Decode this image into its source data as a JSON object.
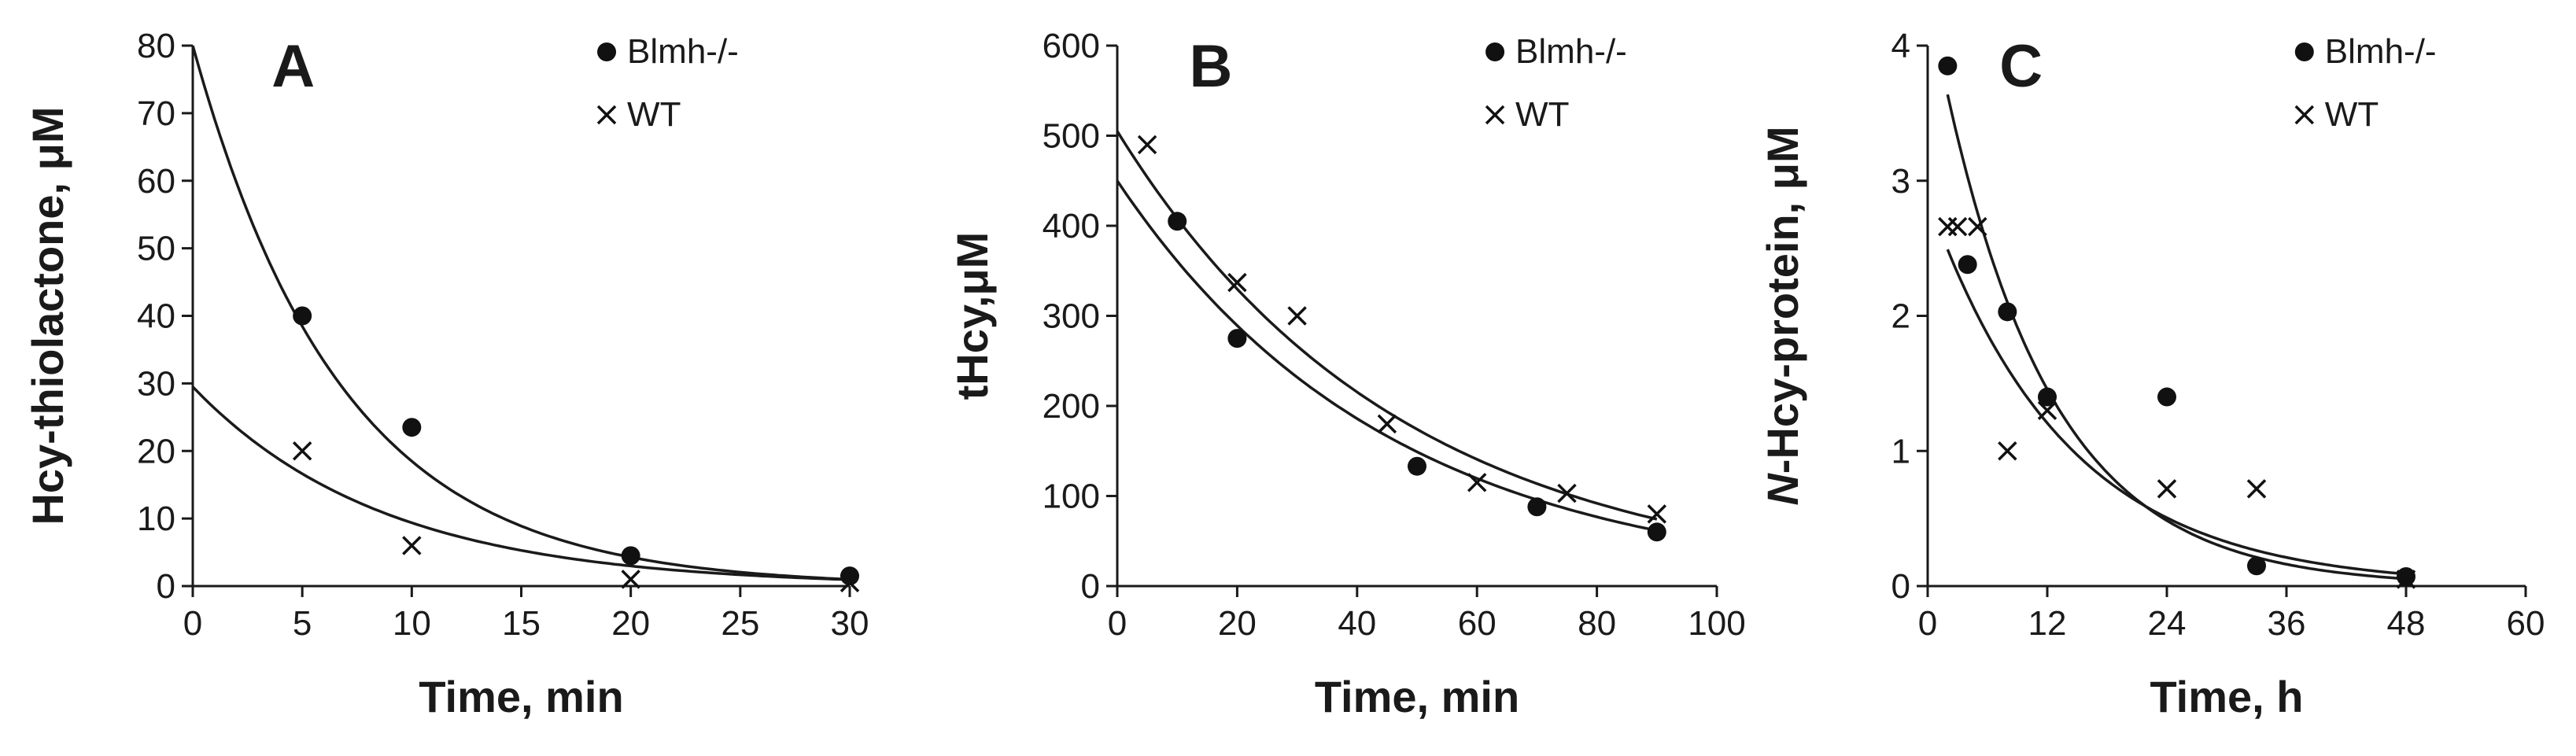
{
  "chart_data": [
    {
      "type": "scatter",
      "panel": "A",
      "xlabel": "Time, min",
      "ylabel": "Hcy-thiolactone, μM",
      "xlim": [
        0,
        30
      ],
      "ylim": [
        0,
        80
      ],
      "xticks": [
        0,
        5,
        10,
        15,
        20,
        25,
        30
      ],
      "yticks": [
        0,
        10,
        20,
        30,
        40,
        50,
        60,
        70,
        80
      ],
      "legend_position": "top-right",
      "series": [
        {
          "name": "Blmh-/-",
          "marker": "dot",
          "x": [
            5,
            10,
            20,
            30
          ],
          "y": [
            40,
            23.5,
            4.5,
            1.5
          ],
          "fit": {
            "a": 80,
            "k": 0.1465
          }
        },
        {
          "name": "WT",
          "marker": "cross",
          "x": [
            5,
            10,
            20,
            30
          ],
          "y": [
            20,
            6,
            1,
            0.5
          ],
          "fit": {
            "a": 29.5,
            "k": 0.1147
          }
        }
      ]
    },
    {
      "type": "scatter",
      "panel": "B",
      "xlabel": "Time, min",
      "ylabel": "tHcy,μM",
      "xlim": [
        0,
        100
      ],
      "ylim": [
        0,
        600
      ],
      "xticks": [
        0,
        20,
        40,
        60,
        80,
        100
      ],
      "yticks": [
        0,
        100,
        200,
        300,
        400,
        500,
        600
      ],
      "legend_position": "top-right",
      "series": [
        {
          "name": "Blmh-/-",
          "marker": "dot",
          "x": [
            10,
            20,
            50,
            70,
            90
          ],
          "y": [
            405,
            275,
            133,
            88,
            60
          ],
          "fit": {
            "a": 450,
            "k": 0.0221
          }
        },
        {
          "name": "WT",
          "marker": "cross",
          "x": [
            5,
            20,
            30,
            45,
            60,
            75,
            90
          ],
          "y": [
            490,
            337,
            300,
            180,
            115,
            103,
            80
          ],
          "fit": {
            "a": 505,
            "k": 0.0213
          }
        }
      ]
    },
    {
      "type": "scatter",
      "panel": "C",
      "xlabel": "Time, h",
      "ylabel_italic": "N",
      "ylabel": "-Hcy-protein, μM",
      "xlim": [
        0,
        60
      ],
      "ylim": [
        0,
        4
      ],
      "xticks": [
        0,
        12,
        24,
        36,
        48,
        60
      ],
      "yticks": [
        0,
        1,
        2,
        3,
        4
      ],
      "legend_position": "top-right",
      "series": [
        {
          "name": "Blmh-/-",
          "marker": "dot",
          "x": [
            2,
            4,
            8,
            12,
            24,
            33,
            48
          ],
          "y": [
            3.85,
            2.38,
            2.03,
            1.4,
            1.4,
            0.15,
            0.07
          ],
          "fit": {
            "a": 4.37,
            "k": 0.0916,
            "x_start": 2
          }
        },
        {
          "name": "WT",
          "marker": "cross",
          "x": [
            2,
            3,
            5,
            8,
            12,
            24,
            33,
            48
          ],
          "y": [
            2.66,
            2.66,
            2.66,
            1.0,
            1.3,
            0.72,
            0.72,
            0.05
          ],
          "fit": {
            "a": 2.88,
            "k": 0.0725,
            "x_start": 2
          }
        }
      ]
    }
  ]
}
